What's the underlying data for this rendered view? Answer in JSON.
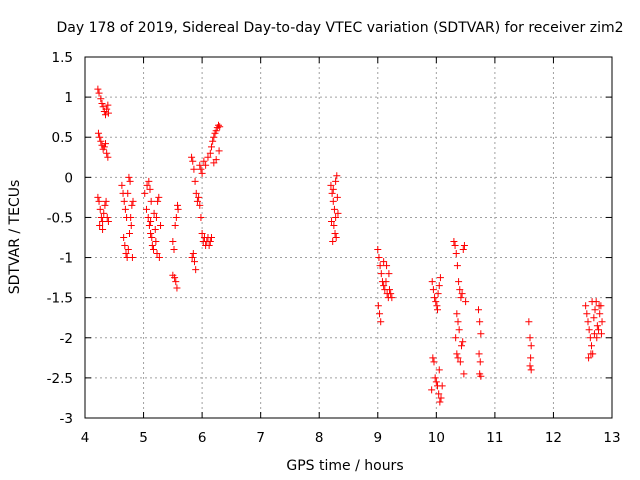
{
  "chart_data": {
    "type": "scatter",
    "title": "Day 178 of 2019, Sidereal Day-to-day VTEC variation (SDTVAR) for receiver zim2",
    "xlabel": "GPS time / hours",
    "ylabel": "SDTVAR / TECUs",
    "xlim": [
      4,
      13
    ],
    "ylim": [
      -3,
      1.5
    ],
    "xticks": [
      "4",
      "5",
      "6",
      "7",
      "8",
      "9",
      "10",
      "11",
      "12",
      "13"
    ],
    "yticks": [
      "1.5",
      "1",
      "0.5",
      "0",
      "-0.5",
      "-1",
      "-1.5",
      "-2",
      "-2.5",
      "-3"
    ],
    "grid": true,
    "marker": "+",
    "series": [
      {
        "name": "SDTVAR",
        "color": "#ff0000",
        "points": [
          [
            4.22,
            1.1
          ],
          [
            4.24,
            1.05
          ],
          [
            4.27,
            0.98
          ],
          [
            4.29,
            0.92
          ],
          [
            4.31,
            0.88
          ],
          [
            4.33,
            0.82
          ],
          [
            4.35,
            0.78
          ],
          [
            4.37,
            0.85
          ],
          [
            4.39,
            0.9
          ],
          [
            4.4,
            0.8
          ],
          [
            4.23,
            0.55
          ],
          [
            4.25,
            0.5
          ],
          [
            4.27,
            0.45
          ],
          [
            4.29,
            0.4
          ],
          [
            4.31,
            0.35
          ],
          [
            4.33,
            0.38
          ],
          [
            4.35,
            0.42
          ],
          [
            4.37,
            0.3
          ],
          [
            4.39,
            0.25
          ],
          [
            4.22,
            -0.25
          ],
          [
            4.24,
            -0.3
          ],
          [
            4.26,
            -0.4
          ],
          [
            4.28,
            -0.5
          ],
          [
            4.3,
            -0.55
          ],
          [
            4.32,
            -0.45
          ],
          [
            4.34,
            -0.35
          ],
          [
            4.36,
            -0.3
          ],
          [
            4.38,
            -0.5
          ],
          [
            4.4,
            -0.55
          ],
          [
            4.25,
            -0.6
          ],
          [
            4.3,
            -0.65
          ],
          [
            4.63,
            -0.1
          ],
          [
            4.65,
            -0.2
          ],
          [
            4.67,
            -0.3
          ],
          [
            4.69,
            -0.4
          ],
          [
            4.71,
            -0.5
          ],
          [
            4.66,
            -0.75
          ],
          [
            4.68,
            -0.85
          ],
          [
            4.7,
            -0.95
          ],
          [
            4.72,
            -1.0
          ],
          [
            4.74,
            -0.9
          ],
          [
            4.76,
            -0.7
          ],
          [
            4.78,
            -0.5
          ],
          [
            4.8,
            -0.35
          ],
          [
            4.73,
            -0.2
          ],
          [
            4.75,
            0.0
          ],
          [
            4.77,
            -0.05
          ],
          [
            4.79,
            -0.6
          ],
          [
            4.81,
            -1.0
          ],
          [
            4.82,
            -0.3
          ],
          [
            5.02,
            -0.2
          ],
          [
            5.05,
            -0.4
          ],
          [
            5.08,
            -0.5
          ],
          [
            5.1,
            -0.6
          ],
          [
            5.12,
            -0.7
          ],
          [
            5.14,
            -0.75
          ],
          [
            5.06,
            -0.1
          ],
          [
            5.09,
            -0.05
          ],
          [
            5.11,
            -0.15
          ],
          [
            5.13,
            -0.3
          ],
          [
            5.15,
            -0.85
          ],
          [
            5.17,
            -0.9
          ],
          [
            5.2,
            -0.65
          ],
          [
            5.22,
            -0.5
          ],
          [
            5.24,
            -0.3
          ],
          [
            5.26,
            -0.25
          ],
          [
            5.18,
            -0.45
          ],
          [
            5.21,
            -0.8
          ],
          [
            5.23,
            -0.95
          ],
          [
            5.27,
            -1.0
          ],
          [
            5.29,
            -0.6
          ],
          [
            5.12,
            -0.55
          ],
          [
            5.5,
            -0.8
          ],
          [
            5.52,
            -0.9
          ],
          [
            5.54,
            -0.6
          ],
          [
            5.56,
            -0.5
          ],
          [
            5.58,
            -0.35
          ],
          [
            5.53,
            -1.25
          ],
          [
            5.55,
            -1.3
          ],
          [
            5.57,
            -1.38
          ],
          [
            5.5,
            -1.22
          ],
          [
            5.59,
            -0.4
          ],
          [
            5.82,
            0.25
          ],
          [
            5.84,
            0.2
          ],
          [
            5.86,
            0.1
          ],
          [
            5.88,
            -0.05
          ],
          [
            5.9,
            -0.2
          ],
          [
            5.92,
            -0.3
          ],
          [
            5.94,
            -0.25
          ],
          [
            5.96,
            -0.35
          ],
          [
            5.85,
            -0.95
          ],
          [
            5.87,
            -1.05
          ],
          [
            5.89,
            -1.15
          ],
          [
            5.83,
            -1.0
          ],
          [
            5.98,
            -0.5
          ],
          [
            6.0,
            -0.7
          ],
          [
            6.02,
            -0.8
          ],
          [
            6.04,
            -0.75
          ],
          [
            6.06,
            -0.85
          ],
          [
            6.08,
            -0.8
          ],
          [
            6.1,
            -0.75
          ],
          [
            6.12,
            -0.85
          ],
          [
            6.14,
            -0.8
          ],
          [
            6.16,
            -0.75
          ],
          [
            5.96,
            0.15
          ],
          [
            5.98,
            0.1
          ],
          [
            6.0,
            0.05
          ],
          [
            6.03,
            0.2
          ],
          [
            6.06,
            0.15
          ],
          [
            6.1,
            0.25
          ],
          [
            6.14,
            0.3
          ],
          [
            6.16,
            0.38
          ],
          [
            6.18,
            0.45
          ],
          [
            6.2,
            0.5
          ],
          [
            6.22,
            0.55
          ],
          [
            6.24,
            0.58
          ],
          [
            6.26,
            0.62
          ],
          [
            6.28,
            0.65
          ],
          [
            6.3,
            0.63
          ],
          [
            6.2,
            0.18
          ],
          [
            6.24,
            0.22
          ],
          [
            6.29,
            0.33
          ],
          [
            8.2,
            -0.1
          ],
          [
            8.22,
            -0.2
          ],
          [
            8.24,
            -0.3
          ],
          [
            8.26,
            -0.4
          ],
          [
            8.28,
            -0.5
          ],
          [
            8.25,
            -0.6
          ],
          [
            8.27,
            -0.7
          ],
          [
            8.29,
            -0.75
          ],
          [
            8.23,
            -0.8
          ],
          [
            8.31,
            -0.25
          ],
          [
            8.3,
            0.02
          ],
          [
            8.28,
            -0.05
          ],
          [
            8.32,
            -0.45
          ],
          [
            8.21,
            -0.55
          ],
          [
            8.24,
            -0.15
          ],
          [
            9.0,
            -0.9
          ],
          [
            9.02,
            -1.0
          ],
          [
            9.04,
            -1.1
          ],
          [
            9.06,
            -1.2
          ],
          [
            9.08,
            -1.3
          ],
          [
            9.1,
            -1.35
          ],
          [
            9.12,
            -1.4
          ],
          [
            9.14,
            -1.3
          ],
          [
            9.16,
            -1.45
          ],
          [
            9.18,
            -1.5
          ],
          [
            9.2,
            -1.4
          ],
          [
            9.22,
            -1.45
          ],
          [
            9.24,
            -1.5
          ],
          [
            9.01,
            -1.6
          ],
          [
            9.03,
            -1.7
          ],
          [
            9.05,
            -1.8
          ],
          [
            9.1,
            -1.05
          ],
          [
            9.15,
            -1.1
          ],
          [
            9.19,
            -1.2
          ],
          [
            9.93,
            -1.3
          ],
          [
            9.95,
            -1.4
          ],
          [
            9.97,
            -1.5
          ],
          [
            9.99,
            -1.55
          ],
          [
            10.01,
            -1.6
          ],
          [
            10.03,
            -1.45
          ],
          [
            10.05,
            -1.35
          ],
          [
            10.07,
            -1.25
          ],
          [
            10.02,
            -1.65
          ],
          [
            9.94,
            -2.25
          ],
          [
            9.96,
            -2.3
          ],
          [
            9.98,
            -2.5
          ],
          [
            10.0,
            -2.55
          ],
          [
            10.02,
            -2.6
          ],
          [
            10.04,
            -2.7
          ],
          [
            10.06,
            -2.8
          ],
          [
            10.08,
            -2.75
          ],
          [
            10.1,
            -2.6
          ],
          [
            9.92,
            -2.65
          ],
          [
            10.05,
            -2.4
          ],
          [
            10.3,
            -0.8
          ],
          [
            10.32,
            -0.85
          ],
          [
            10.34,
            -0.95
          ],
          [
            10.36,
            -1.1
          ],
          [
            10.38,
            -1.3
          ],
          [
            10.4,
            -1.4
          ],
          [
            10.42,
            -1.5
          ],
          [
            10.44,
            -1.45
          ],
          [
            10.46,
            -0.9
          ],
          [
            10.48,
            -0.85
          ],
          [
            10.35,
            -1.7
          ],
          [
            10.37,
            -1.8
          ],
          [
            10.39,
            -1.9
          ],
          [
            10.33,
            -2.0
          ],
          [
            10.35,
            -2.2
          ],
          [
            10.37,
            -2.25
          ],
          [
            10.41,
            -2.3
          ],
          [
            10.43,
            -2.1
          ],
          [
            10.45,
            -2.05
          ],
          [
            10.47,
            -2.45
          ],
          [
            10.5,
            -1.55
          ],
          [
            10.72,
            -1.65
          ],
          [
            10.74,
            -1.8
          ],
          [
            10.76,
            -1.95
          ],
          [
            10.73,
            -2.2
          ],
          [
            10.75,
            -2.3
          ],
          [
            10.74,
            -2.45
          ],
          [
            10.76,
            -2.48
          ],
          [
            11.58,
            -1.8
          ],
          [
            11.6,
            -2.0
          ],
          [
            11.62,
            -2.1
          ],
          [
            11.61,
            -2.25
          ],
          [
            11.6,
            -2.35
          ],
          [
            11.62,
            -2.4
          ],
          [
            12.55,
            -1.6
          ],
          [
            12.57,
            -1.7
          ],
          [
            12.59,
            -1.8
          ],
          [
            12.61,
            -1.9
          ],
          [
            12.63,
            -2.0
          ],
          [
            12.65,
            -2.1
          ],
          [
            12.67,
            -2.2
          ],
          [
            12.69,
            -1.75
          ],
          [
            12.71,
            -1.65
          ],
          [
            12.73,
            -1.55
          ],
          [
            12.75,
            -1.85
          ],
          [
            12.77,
            -1.9
          ],
          [
            12.79,
            -1.7
          ],
          [
            12.81,
            -1.6
          ],
          [
            12.83,
            -1.8
          ],
          [
            12.6,
            -2.25
          ],
          [
            12.64,
            -2.2
          ],
          [
            12.7,
            -1.95
          ],
          [
            12.74,
            -2.0
          ],
          [
            12.78,
            -1.6
          ],
          [
            12.82,
            -1.95
          ],
          [
            12.66,
            -1.55
          ]
        ]
      }
    ]
  }
}
